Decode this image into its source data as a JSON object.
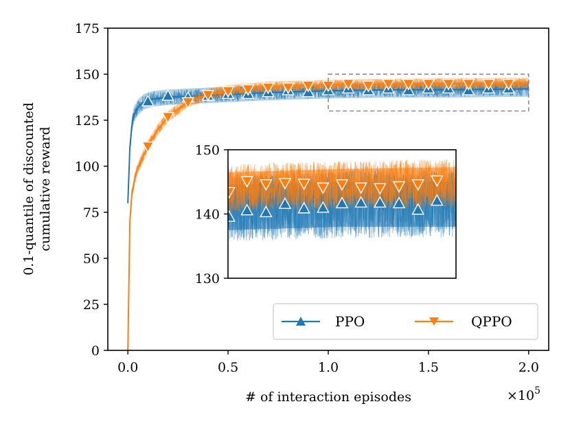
{
  "chart_data": {
    "type": "line",
    "title": "",
    "xlabel": "# of interaction episodes",
    "ylabel_lines": [
      "0.1-quantile of discounted",
      "cumulative reward"
    ],
    "x_scale_base": "×10",
    "x_scale_exp": "5",
    "xlim": [
      -0.1,
      2.1
    ],
    "ylim": [
      0,
      175
    ],
    "xticks": [
      0.0,
      0.5,
      1.0,
      1.5,
      2.0
    ],
    "xtick_labels": [
      "0.0",
      "0.5",
      "1.0",
      "1.5",
      "2.0"
    ],
    "yticks": [
      0,
      25,
      50,
      75,
      100,
      125,
      150,
      175
    ],
    "ytick_labels": [
      "0",
      "25",
      "50",
      "75",
      "100",
      "125",
      "150",
      "175"
    ],
    "grid": false,
    "legend_position": "bottom-right",
    "series": [
      {
        "name": "PPO",
        "color": "#1f77b4",
        "marker": "triangle-up",
        "markers_x": [
          0.1,
          0.2,
          0.3,
          0.4,
          0.5,
          0.6,
          0.7,
          0.8,
          0.9,
          1.0,
          1.1,
          1.2,
          1.3,
          1.4,
          1.5,
          1.6,
          1.7,
          1.8,
          1.9
        ],
        "markers_y": [
          135,
          138,
          137,
          138,
          139,
          139,
          140,
          141,
          140,
          141,
          142,
          141,
          142,
          141,
          142,
          142,
          141,
          142,
          142
        ],
        "curve_x": [
          0.0,
          0.01,
          0.02,
          0.03,
          0.05,
          0.08,
          0.12,
          0.2,
          0.3,
          0.5,
          0.7,
          1.0,
          1.3,
          1.6,
          2.0
        ],
        "curve_y": [
          80,
          110,
          122,
          128,
          132,
          135,
          136.5,
          137.5,
          138,
          139,
          140,
          141,
          141.5,
          141.5,
          142
        ],
        "band_halfwidth": 3.5
      },
      {
        "name": "QPPO",
        "color": "#ff7f0e",
        "marker": "triangle-down",
        "markers_x": [
          0.1,
          0.2,
          0.3,
          0.4,
          0.5,
          0.6,
          0.7,
          0.8,
          0.9,
          1.0,
          1.1,
          1.2,
          1.3,
          1.4,
          1.5,
          1.6,
          1.7,
          1.8,
          1.9
        ],
        "markers_y": [
          111,
          127,
          135,
          139,
          141,
          142,
          143,
          143,
          144,
          144,
          145,
          144,
          145,
          145,
          145,
          145,
          145,
          145,
          145
        ],
        "curve_x": [
          0.0,
          0.01,
          0.02,
          0.04,
          0.07,
          0.1,
          0.15,
          0.2,
          0.3,
          0.4,
          0.5,
          0.7,
          1.0,
          1.3,
          1.6,
          2.0
        ],
        "curve_y": [
          0,
          70,
          85,
          96,
          104,
          111,
          120,
          127,
          135,
          139,
          141,
          143,
          144,
          144.5,
          144.8,
          145
        ],
        "band_halfwidth": 2.5
      }
    ],
    "zoom_box": {
      "xlim": [
        1.0,
        2.0
      ],
      "ylim": [
        130,
        150
      ]
    },
    "inset": {
      "xlim": [
        1.0,
        1.6
      ],
      "ylim": [
        130,
        150
      ],
      "yticks": [
        130,
        140,
        150
      ],
      "ytick_labels": [
        "130",
        "140",
        "150"
      ]
    }
  }
}
